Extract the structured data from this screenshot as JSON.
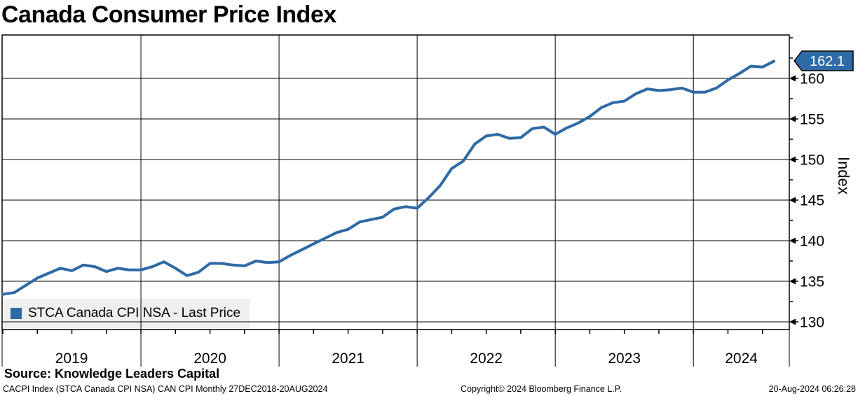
{
  "title": "Canada Consumer Price Index",
  "colors": {
    "series_blue": "#2e6aa5",
    "legend_bg": "#efefef",
    "grid": "#000000",
    "background": "#ffffff",
    "tag_text": "#ffffff"
  },
  "legend": {
    "label": "STCA Canada CPI NSA - Last Price"
  },
  "last_price_tag": "162.1",
  "y_axis_title": "Index",
  "footer": {
    "source": "Source: Knowledge Leaders Capital",
    "security_info": "CACPI Index (STCA Canada CPI NSA) CAN CPI  Monthly 27DEC2018-20AUG2024",
    "copyright": "Copyright© 2024 Bloomberg Finance L.P.",
    "timestamp": "20-Aug-2024 06:26:28"
  },
  "chart_data": {
    "type": "line",
    "title": "Canada Consumer Price Index",
    "xlabel": "",
    "ylabel": "Index",
    "y_axis_side": "right",
    "grid": true,
    "legend_position": "bottom-left",
    "x_tick_labels": [
      "2019",
      "2020",
      "2021",
      "2022",
      "2023",
      "2024"
    ],
    "y_ticks": [
      130,
      135,
      140,
      145,
      150,
      155,
      160
    ],
    "y_minor_ticks": [
      132.5,
      137.5,
      142.5,
      147.5,
      152.5,
      157.5,
      162.5,
      165
    ],
    "ylim": [
      129,
      165.3
    ],
    "x_range": {
      "start": "2018-12",
      "end": "2024-07",
      "frequency": "Monthly",
      "axis_span": "27DEC2018-20AUG2024"
    },
    "last_price": 162.1,
    "series": [
      {
        "name": "STCA Canada CPI NSA - Last Price",
        "color": "#2e6aa5",
        "start_month": "2018-12",
        "values": [
          133.4,
          133.6,
          134.5,
          135.4,
          136.0,
          136.6,
          136.3,
          137.0,
          136.8,
          136.2,
          136.6,
          136.4,
          136.4,
          136.8,
          137.4,
          136.6,
          135.7,
          136.1,
          137.2,
          137.2,
          137.0,
          136.9,
          137.5,
          137.3,
          137.4,
          138.2,
          138.9,
          139.6,
          140.3,
          141.0,
          141.4,
          142.3,
          142.6,
          142.9,
          143.9,
          144.2,
          144.0,
          145.3,
          146.8,
          148.9,
          149.8,
          151.9,
          152.9,
          153.1,
          152.6,
          152.7,
          153.8,
          154.0,
          153.1,
          153.9,
          154.5,
          155.3,
          156.4,
          157.0,
          157.2,
          158.1,
          158.7,
          158.5,
          158.6,
          158.8,
          158.3,
          158.3,
          158.8,
          159.8,
          160.6,
          161.5,
          161.4,
          162.1
        ]
      }
    ]
  }
}
